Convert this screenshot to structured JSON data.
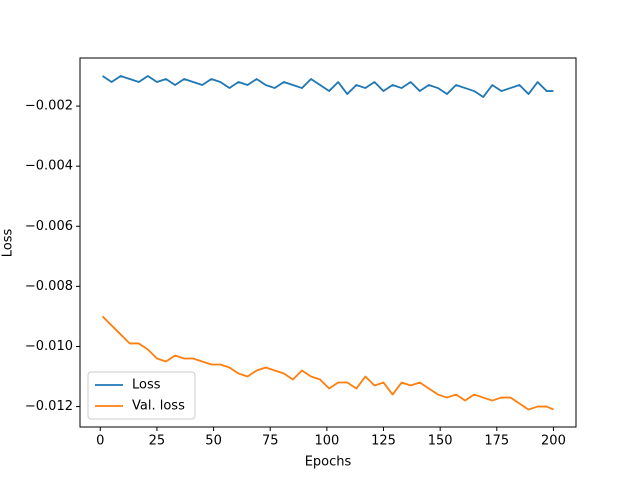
{
  "chart_data": {
    "type": "line",
    "x_label": "Epochs",
    "y_label": "Loss",
    "x": [
      1,
      5,
      9,
      13,
      17,
      21,
      25,
      29,
      33,
      37,
      41,
      45,
      49,
      53,
      57,
      61,
      65,
      69,
      73,
      77,
      81,
      85,
      89,
      93,
      97,
      101,
      105,
      109,
      113,
      117,
      121,
      125,
      129,
      133,
      137,
      141,
      145,
      149,
      153,
      157,
      161,
      165,
      169,
      173,
      177,
      181,
      185,
      189,
      193,
      197,
      200
    ],
    "series": [
      {
        "name": "Loss",
        "color": "#1f77b4",
        "values": [
          -0.001,
          -0.0012,
          -0.001,
          -0.0011,
          -0.0012,
          -0.001,
          -0.0012,
          -0.0011,
          -0.0013,
          -0.0011,
          -0.0012,
          -0.0013,
          -0.0011,
          -0.0012,
          -0.0014,
          -0.0012,
          -0.0013,
          -0.0011,
          -0.0013,
          -0.0014,
          -0.0012,
          -0.0013,
          -0.0014,
          -0.0011,
          -0.0013,
          -0.0015,
          -0.0012,
          -0.0016,
          -0.0013,
          -0.0014,
          -0.0012,
          -0.0015,
          -0.0013,
          -0.0014,
          -0.0012,
          -0.0015,
          -0.0013,
          -0.0014,
          -0.0016,
          -0.0013,
          -0.0014,
          -0.0015,
          -0.0017,
          -0.0013,
          -0.0015,
          -0.0014,
          -0.0013,
          -0.0016,
          -0.0012,
          -0.0015,
          -0.0015
        ]
      },
      {
        "name": "Val. loss",
        "color": "#ff7f0e",
        "values": [
          -0.009,
          -0.0093,
          -0.0096,
          -0.0099,
          -0.0099,
          -0.0101,
          -0.0104,
          -0.0105,
          -0.0103,
          -0.0104,
          -0.0104,
          -0.0105,
          -0.0106,
          -0.0106,
          -0.0107,
          -0.0109,
          -0.011,
          -0.0108,
          -0.0107,
          -0.0108,
          -0.0109,
          -0.0111,
          -0.0108,
          -0.011,
          -0.0111,
          -0.0114,
          -0.0112,
          -0.0112,
          -0.0114,
          -0.011,
          -0.0113,
          -0.0112,
          -0.0116,
          -0.0112,
          -0.0113,
          -0.0112,
          -0.0114,
          -0.0116,
          -0.0117,
          -0.0116,
          -0.0118,
          -0.0116,
          -0.0117,
          -0.0118,
          -0.0117,
          -0.0117,
          -0.0119,
          -0.0121,
          -0.012,
          -0.012,
          -0.0121
        ]
      }
    ],
    "xlim": [
      -8.95,
      209.95
    ],
    "xticks": [
      0,
      25,
      50,
      75,
      100,
      125,
      150,
      175,
      200
    ],
    "ylim": [
      -0.01268,
      -0.0004
    ],
    "yticks": [
      {
        "value": -0.012,
        "label": "−0.012"
      },
      {
        "value": -0.01,
        "label": "−0.010"
      },
      {
        "value": -0.008,
        "label": "−0.008"
      },
      {
        "value": -0.006,
        "label": "−0.006"
      },
      {
        "value": -0.004,
        "label": "−0.004"
      },
      {
        "value": -0.002,
        "label": "−0.002"
      }
    ],
    "legend": "lower left",
    "grid": false
  }
}
